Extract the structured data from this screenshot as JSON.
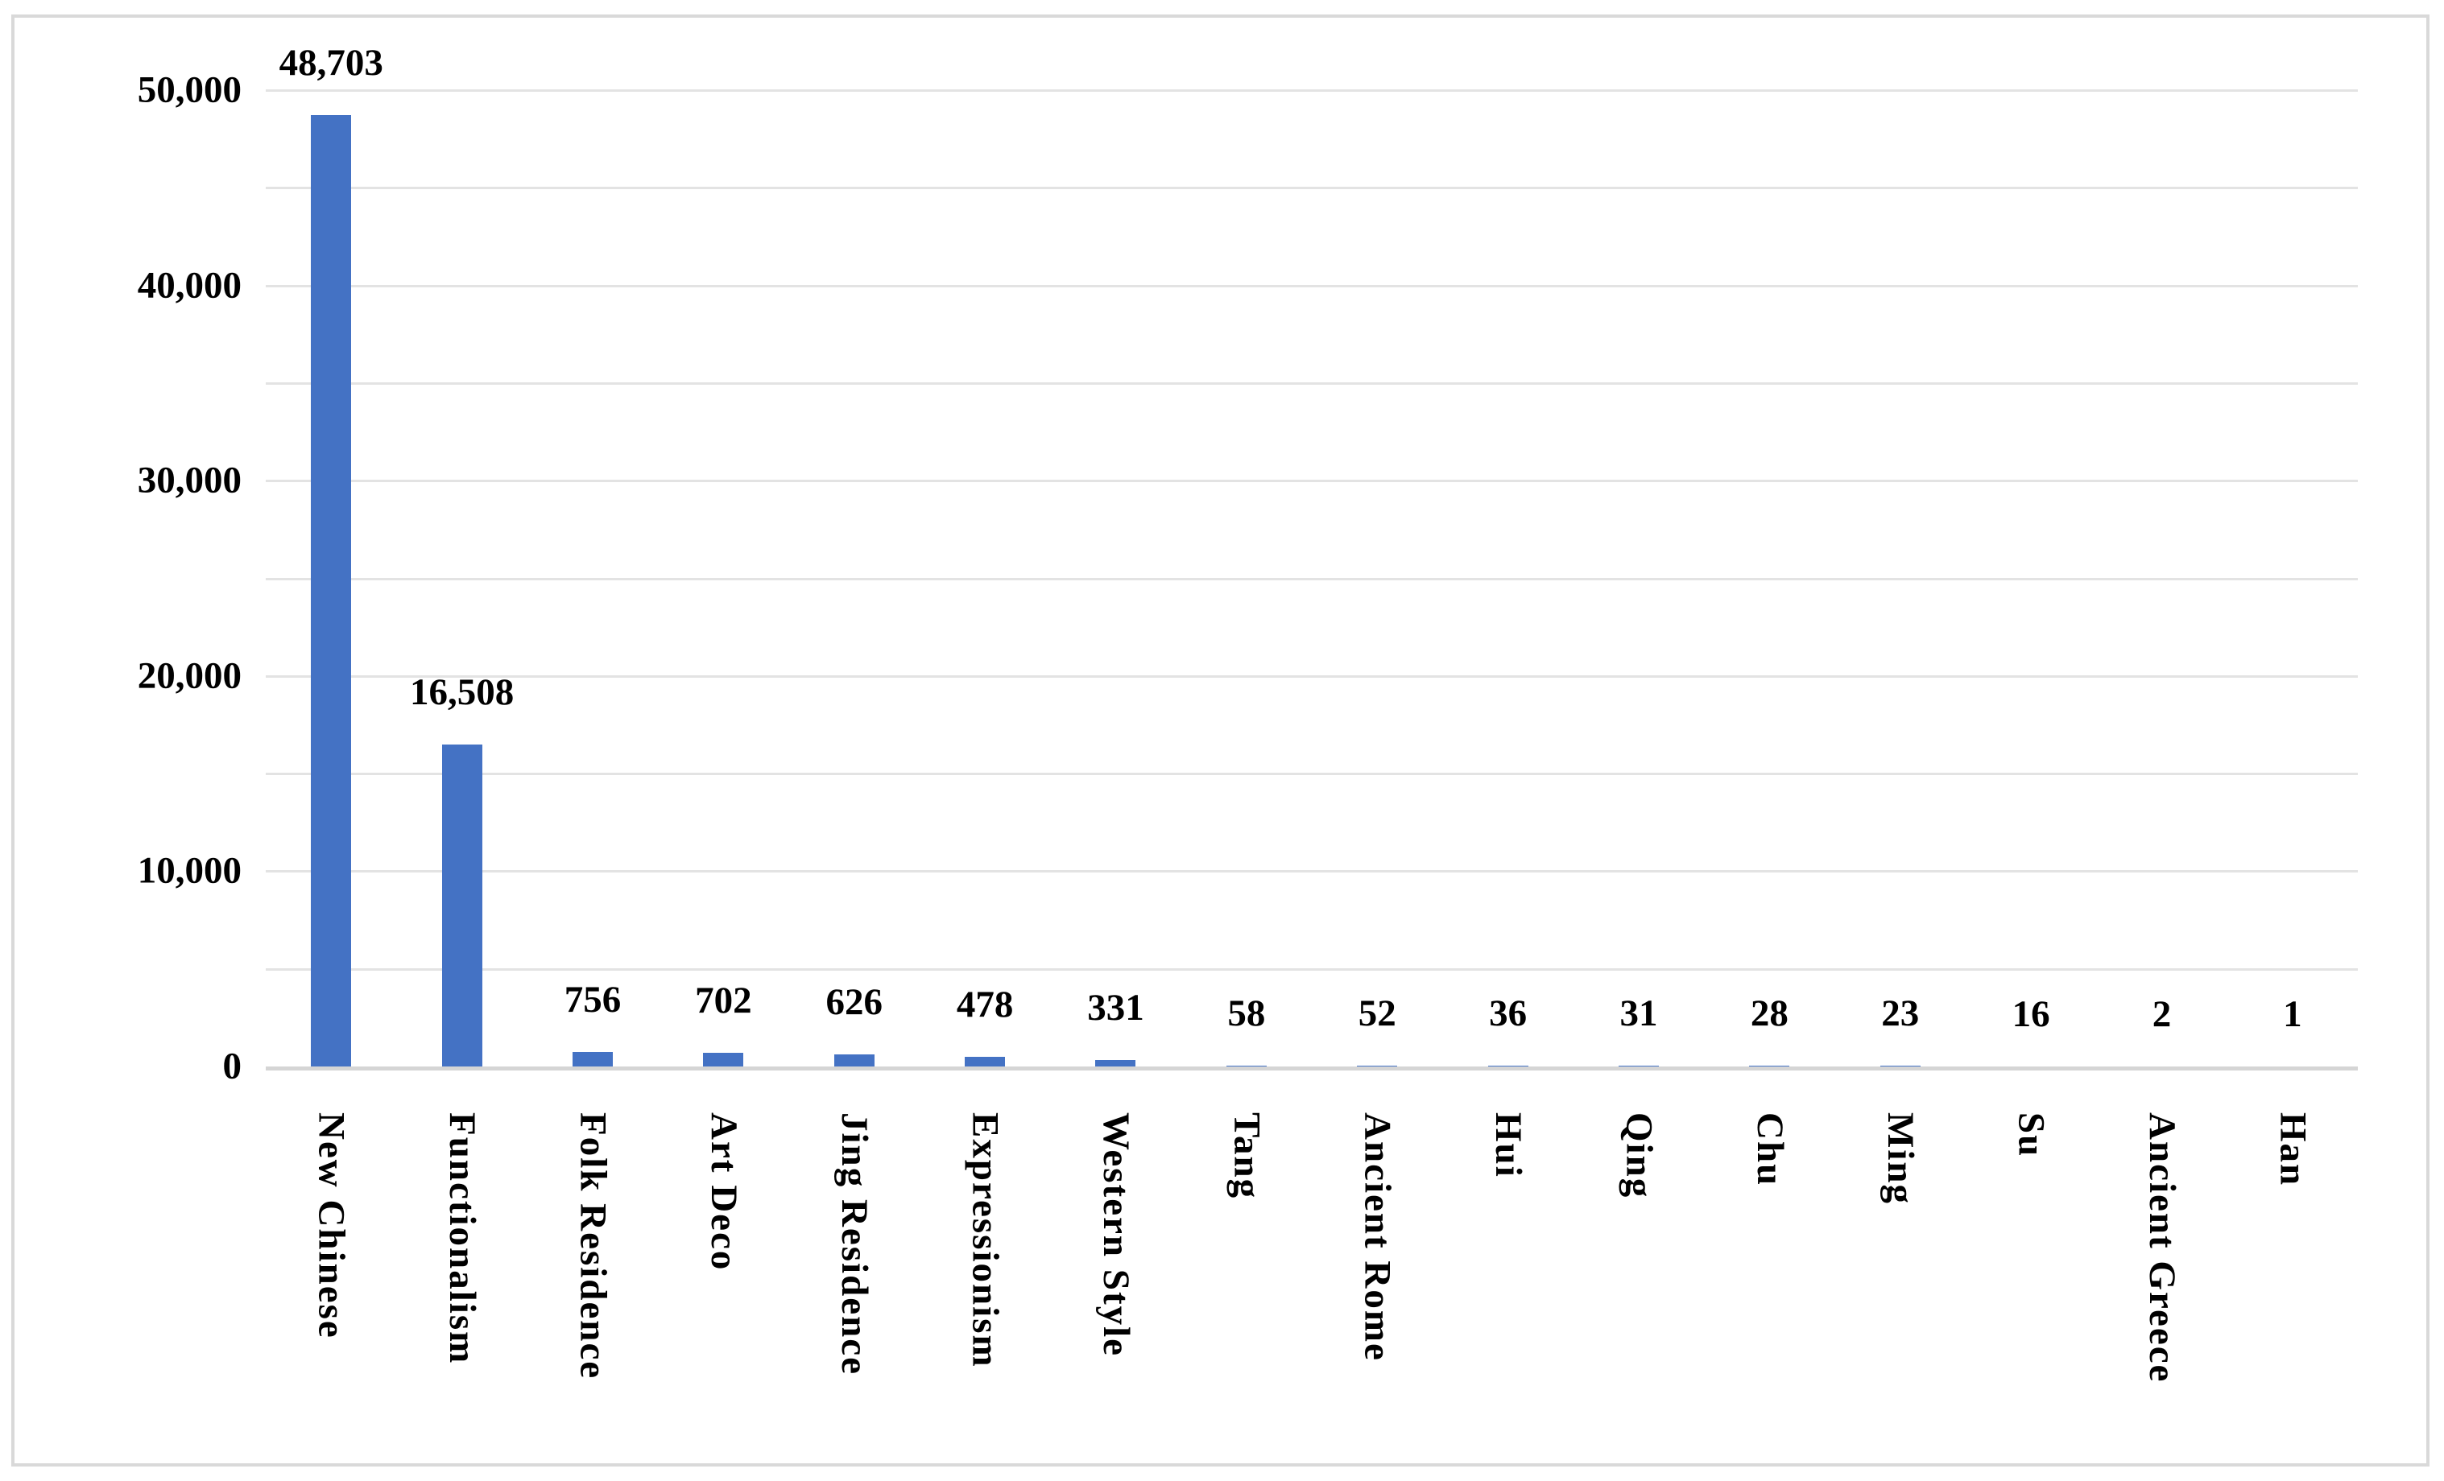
{
  "chart_data": {
    "type": "bar",
    "title": "",
    "xlabel": "",
    "ylabel": "",
    "categories": [
      "New Chinese",
      "Functionalism",
      "Folk Residence",
      "Art Deco",
      "Jing Residence",
      "Expressionism",
      "Western Style",
      "Tang",
      "Ancient Rome",
      "Hui",
      "Qing",
      "Chu",
      "Ming",
      "Su",
      "Ancient Greece",
      "Han"
    ],
    "values": [
      48703,
      16508,
      756,
      702,
      626,
      478,
      331,
      58,
      52,
      36,
      31,
      28,
      23,
      16,
      2,
      1
    ],
    "data_labels": [
      "48,703",
      "16,508",
      "756",
      "702",
      "626",
      "478",
      "331",
      "58",
      "52",
      "36",
      "31",
      "28",
      "23",
      "16",
      "2",
      "1"
    ],
    "ylim": [
      0,
      50000
    ],
    "y_tick_interval_labeled": 10000,
    "y_gridline_interval": 5000,
    "y_tick_labels": [
      "0",
      "10,000",
      "20,000",
      "30,000",
      "40,000",
      "50,000"
    ],
    "grid": "horizontal-on",
    "legend": "none",
    "x_label_rotation": "vertical-top-to-bottom",
    "colors": {
      "bar": "#4472C4",
      "gridline": "#e3e3e3",
      "axis_line": "#d5d5d5",
      "chart_border": "#d9d9d9",
      "background": "#ffffff",
      "text": "#000000"
    }
  }
}
